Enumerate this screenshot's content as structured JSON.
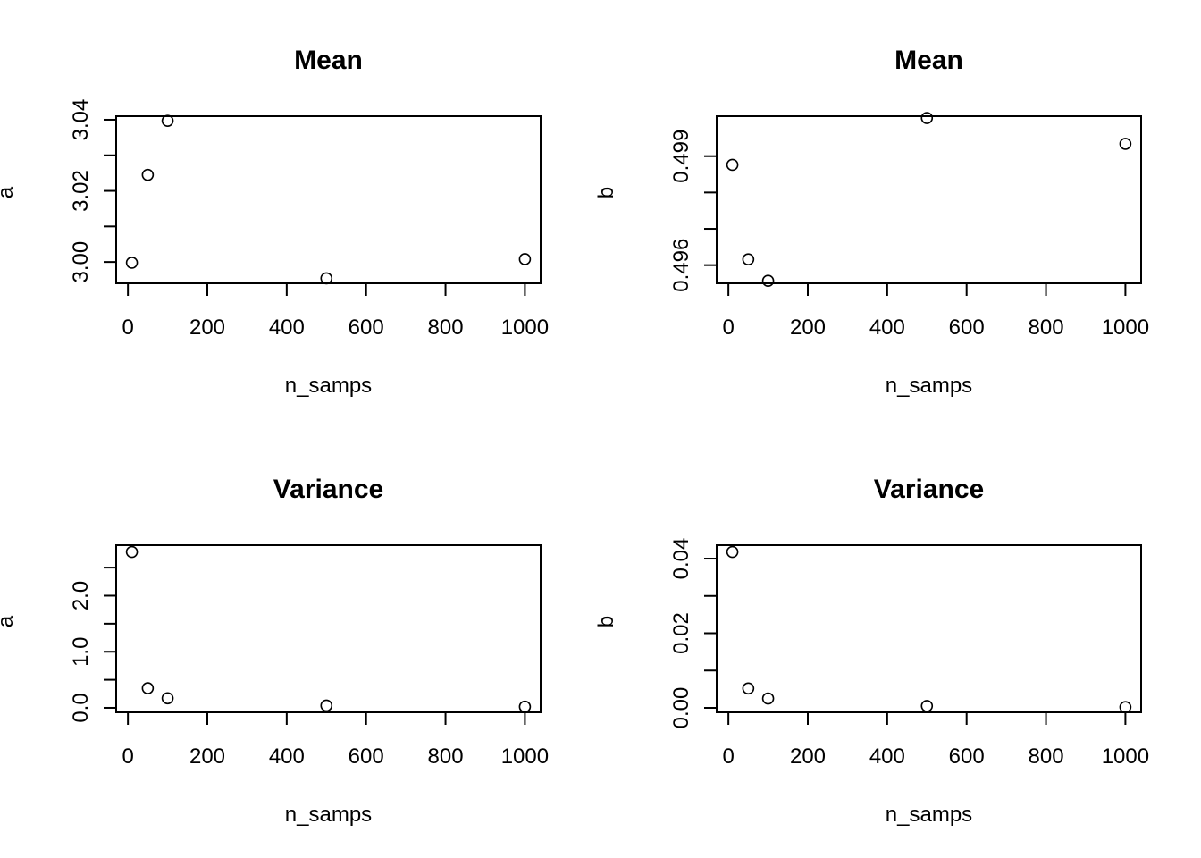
{
  "chart_data": [
    {
      "type": "scatter",
      "title": "Mean",
      "xlabel": "n_samps",
      "ylabel": "a",
      "x": [
        10,
        50,
        100,
        500,
        1000
      ],
      "y": [
        2.9998,
        3.0245,
        3.0397,
        2.9954,
        3.0008
      ],
      "xlim": [
        0,
        1000
      ],
      "ylim": [
        2.994,
        3.041
      ],
      "xticks": [
        0,
        200,
        400,
        600,
        800,
        1000
      ],
      "xtick_labels": [
        "0",
        "200",
        "400",
        "600",
        "800",
        "1000"
      ],
      "yticks": [
        3.0,
        3.01,
        3.02,
        3.03,
        3.04
      ],
      "ytick_labels": [
        "3.00",
        "",
        "3.02",
        "",
        "3.04"
      ],
      "grid": false
    },
    {
      "type": "scatter",
      "title": "Mean",
      "xlabel": "n_samps",
      "ylabel": "b",
      "x": [
        10,
        50,
        100,
        500,
        1000
      ],
      "y": [
        0.49876,
        0.49616,
        0.49557,
        0.50005,
        0.49934
      ],
      "xlim": [
        0,
        1000
      ],
      "ylim": [
        0.4955,
        0.5001
      ],
      "xticks": [
        0,
        200,
        400,
        600,
        800,
        1000
      ],
      "xtick_labels": [
        "0",
        "200",
        "400",
        "600",
        "800",
        "1000"
      ],
      "yticks": [
        0.496,
        0.497,
        0.498,
        0.499
      ],
      "ytick_labels": [
        "0.496",
        "",
        "",
        "0.499"
      ],
      "grid": false
    },
    {
      "type": "scatter",
      "title": "Variance",
      "xlabel": "n_samps",
      "ylabel": "a",
      "x": [
        10,
        50,
        100,
        500,
        1000
      ],
      "y": [
        2.78,
        0.35,
        0.17,
        0.04,
        0.02
      ],
      "xlim": [
        0,
        1000
      ],
      "ylim": [
        -0.08,
        2.9
      ],
      "xticks": [
        0,
        200,
        400,
        600,
        800,
        1000
      ],
      "xtick_labels": [
        "0",
        "200",
        "400",
        "600",
        "800",
        "1000"
      ],
      "yticks": [
        0.0,
        0.5,
        1.0,
        1.5,
        2.0,
        2.5
      ],
      "ytick_labels": [
        "0.0",
        "",
        "1.0",
        "",
        "2.0",
        ""
      ],
      "grid": false
    },
    {
      "type": "scatter",
      "title": "Variance",
      "xlabel": "n_samps",
      "ylabel": "b",
      "x": [
        10,
        50,
        100,
        500,
        1000
      ],
      "y": [
        0.0418,
        0.0052,
        0.0025,
        0.0005,
        0.0002
      ],
      "xlim": [
        0,
        1000
      ],
      "ylim": [
        -0.0012,
        0.0436
      ],
      "xticks": [
        0,
        200,
        400,
        600,
        800,
        1000
      ],
      "xtick_labels": [
        "0",
        "200",
        "400",
        "600",
        "800",
        "1000"
      ],
      "yticks": [
        0.0,
        0.01,
        0.02,
        0.03,
        0.04
      ],
      "ytick_labels": [
        "0.00",
        "",
        "0.02",
        "",
        "0.04"
      ],
      "grid": false
    }
  ]
}
